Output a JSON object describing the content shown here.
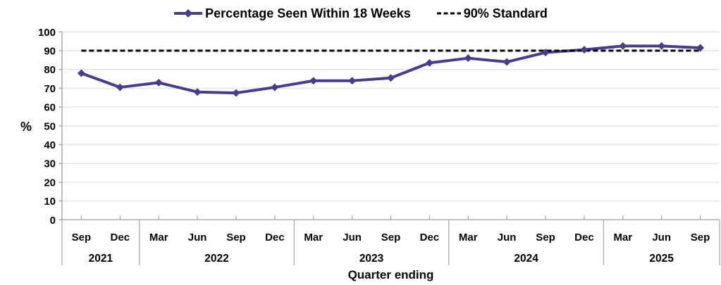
{
  "chart_data": {
    "type": "line",
    "title": "",
    "xlabel": "Quarter ending",
    "ylabel": "%",
    "ylim": [
      0,
      100
    ],
    "ytick_step": 10,
    "yticks": [
      0,
      10,
      20,
      30,
      40,
      50,
      60,
      70,
      80,
      90,
      100
    ],
    "grid": true,
    "legend_position": "top-center",
    "categories": [
      "Sep",
      "Dec",
      "Mar",
      "Jun",
      "Sep",
      "Dec",
      "Mar",
      "Jun",
      "Sep",
      "Dec",
      "Mar",
      "Jun",
      "Sep",
      "Dec",
      "Mar",
      "Jun",
      "Sep"
    ],
    "year_groups": [
      {
        "label": "2021",
        "count": 2
      },
      {
        "label": "2022",
        "count": 4
      },
      {
        "label": "2023",
        "count": 4
      },
      {
        "label": "2024",
        "count": 4
      },
      {
        "label": "2025",
        "count": 3
      }
    ],
    "series": [
      {
        "name": "Percentage Seen Within 18 Weeks",
        "style": "solid",
        "marker": "diamond",
        "color": "#473D8F",
        "values": [
          78,
          70.5,
          73,
          68,
          67.5,
          70.5,
          74,
          74,
          75.5,
          83.5,
          86,
          84,
          89,
          90.5,
          92.5,
          92.5,
          91.5
        ]
      },
      {
        "name": "90% Standard",
        "style": "dashed",
        "marker": "none",
        "color": "#000000",
        "values": [
          90,
          90,
          90,
          90,
          90,
          90,
          90,
          90,
          90,
          90,
          90,
          90,
          90,
          90,
          90,
          90,
          90
        ]
      }
    ],
    "colors": {
      "series_line": "#473D8F",
      "standard_line": "#000000",
      "gridline": "#dce6f1",
      "axis": "#a6a6a6",
      "text": "#000000",
      "background": "#ffffff"
    }
  },
  "legend": {
    "items": [
      {
        "label": "Percentage Seen Within 18 Weeks"
      },
      {
        "label": "90% Standard"
      }
    ]
  }
}
